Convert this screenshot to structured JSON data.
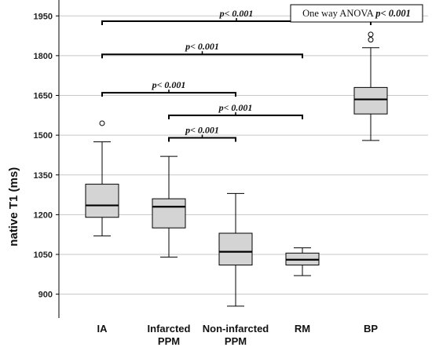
{
  "chart_data": {
    "type": "box",
    "ylabel": "native T1 (ms)",
    "xlabel": "",
    "ylim": [
      810,
      2010
    ],
    "yticks": [
      900,
      1050,
      1200,
      1350,
      1500,
      1650,
      1800,
      1950
    ],
    "grid": true,
    "categories": [
      {
        "lines": [
          "IA"
        ]
      },
      {
        "lines": [
          "Infarcted",
          "PPM"
        ]
      },
      {
        "lines": [
          "Non-infarcted",
          "PPM"
        ]
      },
      {
        "lines": [
          "RM"
        ]
      },
      {
        "lines": [
          "BP"
        ]
      }
    ],
    "boxes": [
      {
        "min": 1120,
        "q1": 1190,
        "median": 1235,
        "q3": 1315,
        "max": 1475,
        "outliers": [
          1545
        ]
      },
      {
        "min": 1040,
        "q1": 1150,
        "median": 1230,
        "q3": 1260,
        "max": 1420,
        "outliers": []
      },
      {
        "min": 855,
        "q1": 1010,
        "median": 1060,
        "q3": 1130,
        "max": 1280,
        "outliers": []
      },
      {
        "min": 970,
        "q1": 1010,
        "median": 1030,
        "q3": 1055,
        "max": 1075,
        "outliers": []
      },
      {
        "min": 1480,
        "q1": 1580,
        "median": 1635,
        "q3": 1680,
        "max": 1830,
        "outliers": [
          1860,
          1880
        ]
      }
    ],
    "comparisons": [
      {
        "from": 0,
        "to": 4,
        "y": 1930,
        "label": "p< 0.001"
      },
      {
        "from": 0,
        "to": 3,
        "y": 1805,
        "label": "p< 0.001"
      },
      {
        "from": 0,
        "to": 2,
        "y": 1660,
        "label": "p< 0.001"
      },
      {
        "from": 1,
        "to": 3,
        "y": 1575,
        "label": "p< 0.001"
      },
      {
        "from": 1,
        "to": 2,
        "y": 1490,
        "label": "p< 0.001"
      }
    ],
    "legend": {
      "position": "top-right",
      "text": "One way ANOVA ",
      "p": "p< 0.001"
    },
    "colors": {
      "box_fill": "#d4d4d4",
      "stroke": "#000000",
      "grid": "#c8c8c8"
    }
  }
}
